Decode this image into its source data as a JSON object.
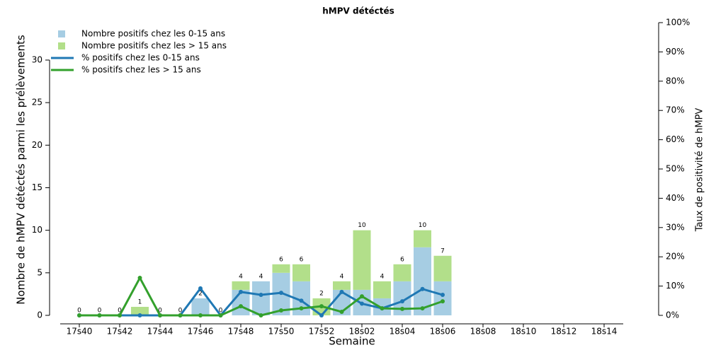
{
  "chart_data": {
    "type": "bar",
    "title": "hMPV détéctés",
    "xlabel": "Semaine",
    "ylabel": "Nombre de hMPV détéctés parmi les prélèvements",
    "y2label": "Taux de positivité de hMPV",
    "categories": [
      "17s40",
      null,
      "17s42",
      null,
      "17s44",
      null,
      "17s46",
      null,
      "17s48",
      null,
      "17s50",
      null,
      "17s52",
      null,
      "18s02",
      null,
      "18s04",
      null,
      "18s06",
      null,
      "18s08",
      null,
      "18s10",
      null,
      "18s12",
      null,
      "18s14",
      null
    ],
    "ylim": [
      0,
      34.4
    ],
    "yticks": [
      0,
      5,
      10,
      15,
      20,
      25,
      30
    ],
    "y2lim": [
      0,
      100
    ],
    "y2ticks": [
      {
        "value": 0,
        "label": "0%"
      },
      {
        "value": 10,
        "label": "10%"
      },
      {
        "value": 20,
        "label": "20%"
      },
      {
        "value": 30,
        "label": "30%"
      },
      {
        "value": 40,
        "label": "40%"
      },
      {
        "value": 50,
        "label": "50%"
      },
      {
        "value": 60,
        "label": "60%"
      },
      {
        "value": 70,
        "label": "70%"
      },
      {
        "value": 80,
        "label": "80%"
      },
      {
        "value": 90,
        "label": "90%"
      },
      {
        "value": 100,
        "label": "100%"
      }
    ],
    "totals": [
      0,
      0,
      0,
      1,
      0,
      0,
      2,
      0,
      4,
      4,
      6,
      6,
      2,
      4,
      10,
      4,
      6,
      10,
      7,
      null,
      null,
      null,
      null,
      null,
      null,
      null,
      null,
      null
    ],
    "legend": "top-left",
    "series": [
      {
        "name": "Nombre positifs chez les 0-15 ans",
        "type": "bar",
        "axis": "y",
        "color": "#a6cde3",
        "values": [
          0,
          0,
          0,
          0,
          0,
          0,
          2,
          0,
          3,
          4,
          5,
          4,
          0,
          3,
          3,
          2,
          4,
          8,
          4,
          null,
          null,
          null,
          null,
          null,
          null,
          null,
          null,
          null
        ]
      },
      {
        "name": "Nombre positifs chez les > 15 ans",
        "type": "bar",
        "axis": "y",
        "color": "#b2df8a",
        "values": [
          0,
          0,
          0,
          1,
          0,
          0,
          0,
          0,
          1,
          0,
          1,
          2,
          2,
          1,
          7,
          2,
          2,
          2,
          3,
          null,
          null,
          null,
          null,
          null,
          null,
          null,
          null,
          null
        ]
      },
      {
        "name": "% positifs chez les 0-15 ans",
        "type": "line",
        "axis": "y2",
        "color": "#1f78b4",
        "values": [
          0,
          0,
          0,
          0,
          0,
          0,
          9.2,
          0,
          8,
          7,
          7.7,
          5,
          0,
          8,
          4,
          2.4,
          4.8,
          9,
          7,
          null,
          null,
          null,
          null,
          null,
          null,
          null,
          null,
          null
        ]
      },
      {
        "name": "% positifs chez les > 15 ans",
        "type": "line",
        "axis": "y2",
        "color": "#33a02c",
        "values": [
          0,
          0,
          0,
          12.8,
          0,
          0,
          0,
          0,
          3.1,
          0,
          1.7,
          2.4,
          3.1,
          1.2,
          6.5,
          2.4,
          2.2,
          2.4,
          4.8,
          null,
          null,
          null,
          null,
          null,
          null,
          null,
          null,
          null
        ]
      }
    ]
  }
}
